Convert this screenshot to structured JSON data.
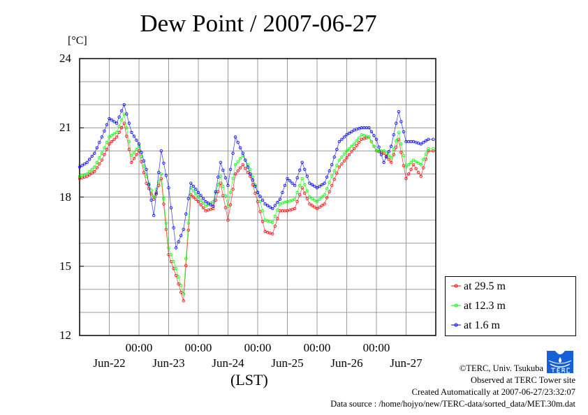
{
  "chart_data": {
    "type": "line",
    "title": "Dew Point / 2007-06-27",
    "ylabel": "[°C]",
    "xlabel": "(LST)",
    "ylim": [
      12,
      24
    ],
    "yticks": [
      "24",
      "21",
      "18",
      "15",
      "12"
    ],
    "ytick_values": [
      24,
      21,
      18,
      15,
      12
    ],
    "xtime_labels": [
      "00:00",
      "00:00",
      "00:00",
      "00:00",
      "00:00"
    ],
    "xdate_labels": [
      "Jun-22",
      "Jun-23",
      "Jun-24",
      "Jun-25",
      "Jun-26",
      "Jun-27"
    ],
    "x_range_hours": [
      0,
      144
    ],
    "sample_interval_hours": 3,
    "grid": true,
    "legend_position": "right-bottom",
    "series": [
      {
        "name": "at 29.5 m",
        "color": "#ff0000",
        "values": [
          18.8,
          18.9,
          19.1,
          19.6,
          20.3,
          20.6,
          21.2,
          19.5,
          20.0,
          18.6,
          17.9,
          18.8,
          15.5,
          14.6,
          13.5,
          18.1,
          17.8,
          17.4,
          17.5,
          18.6,
          17.0,
          19.0,
          19.4,
          18.9,
          17.8,
          16.5,
          16.4,
          17.4,
          17.4,
          17.5,
          18.4,
          17.7,
          17.5,
          17.7,
          18.5,
          19.3,
          19.7,
          20.1,
          20.5,
          20.6,
          20.0,
          19.9,
          19.5,
          20.5,
          18.8,
          19.4,
          18.9,
          20.0
        ]
      },
      {
        "name": "at 12.3 m",
        "color": "#00ff00",
        "values": [
          18.9,
          19.0,
          19.3,
          19.9,
          20.6,
          20.8,
          21.6,
          19.8,
          20.2,
          18.9,
          18.0,
          19.0,
          15.8,
          14.9,
          13.8,
          18.4,
          18.0,
          17.6,
          17.8,
          18.9,
          17.6,
          19.4,
          19.8,
          19.2,
          18.2,
          17.0,
          16.9,
          17.7,
          17.8,
          17.9,
          18.8,
          18.0,
          17.8,
          18.1,
          18.9,
          19.6,
          20.0,
          20.3,
          20.7,
          20.6,
          20.0,
          20.0,
          19.7,
          20.8,
          19.3,
          19.6,
          19.4,
          20.1
        ]
      },
      {
        "name": "at 1.6 m",
        "color": "#0000ff",
        "values": [
          19.3,
          19.5,
          19.9,
          20.6,
          21.4,
          21.2,
          22.0,
          20.8,
          20.3,
          19.2,
          17.2,
          20.0,
          18.4,
          15.8,
          16.6,
          18.6,
          18.2,
          17.8,
          17.6,
          19.5,
          18.5,
          20.6,
          19.9,
          19.0,
          18.2,
          17.7,
          17.5,
          17.9,
          18.8,
          18.5,
          19.5,
          18.6,
          18.4,
          18.6,
          19.4,
          20.4,
          20.7,
          20.9,
          21.0,
          21.0,
          20.5,
          19.5,
          20.2,
          21.7,
          20.4,
          20.4,
          20.3,
          20.5
        ]
      }
    ]
  },
  "footer": {
    "copyright": "©TERC, Univ. Tsukuba",
    "observed": "Observed at TERC Tower site",
    "created": "Created Automatically at 2007-06-27/23:32:07",
    "source": "Data source : /home/hojyo/new/TERC-data/sorted_data/MET.30m.dat",
    "logo_text": "TERC"
  }
}
